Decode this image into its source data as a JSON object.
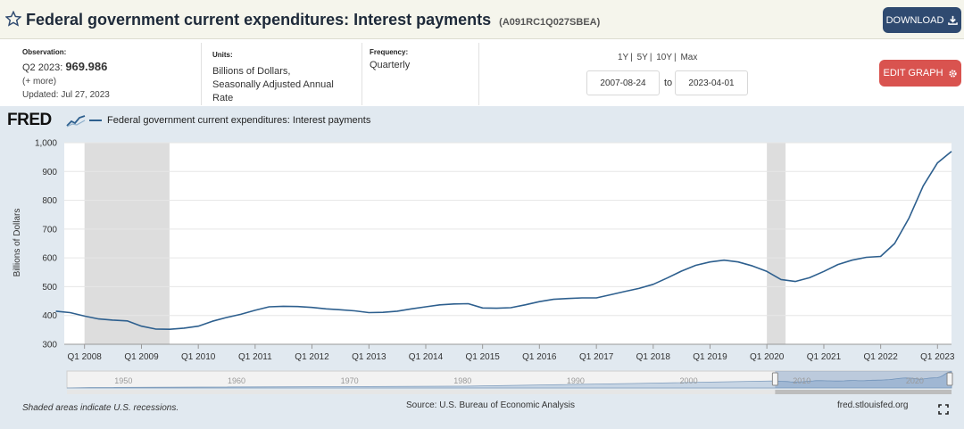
{
  "header": {
    "title": "Federal government current expenditures: Interest payments",
    "series_id": "(A091RC1Q027SBEA)",
    "download_label": "DOWNLOAD"
  },
  "meta": {
    "observation_label": "Observation:",
    "observation_period": "Q2 2023:",
    "observation_value": "969.986",
    "more": "(+ more)",
    "updated": "Updated: Jul 27, 2023",
    "units_label": "Units:",
    "units_lines": [
      "Billions of Dollars,",
      "Seasonally Adjusted Annual",
      "Rate"
    ],
    "frequency_label": "Frequency:",
    "frequency": "Quarterly"
  },
  "controls": {
    "ranges": [
      "1Y",
      "5Y",
      "10Y",
      "Max"
    ],
    "start_date": "2007-08-24",
    "to_label": "to",
    "end_date": "2023-04-01",
    "edit_label": "EDIT GRAPH"
  },
  "chart_header": {
    "logo": "FRED",
    "legend": "Federal government current expenditures: Interest payments"
  },
  "footer": {
    "note": "Shaded areas indicate U.S. recessions.",
    "source": "Source: U.S. Bureau of Economic Analysis",
    "site": "fred.stlouisfed.org"
  },
  "colors": {
    "line": "#2d5f8e",
    "recession": "#dddddd",
    "panel": "#e1e9f0",
    "edit_button": "#d9534f",
    "download_button": "#2f4a70"
  },
  "chart_data": {
    "type": "line",
    "title": "",
    "xlabel": "",
    "ylabel": "Billions of Dollars",
    "ylim": [
      300,
      1000
    ],
    "yticks": [
      "300",
      "400",
      "500",
      "600",
      "700",
      "800",
      "900",
      "1,000"
    ],
    "xticks": [
      "Q1 2008",
      "Q1 2009",
      "Q1 2010",
      "Q1 2011",
      "Q1 2012",
      "Q1 2013",
      "Q1 2014",
      "Q1 2015",
      "Q1 2016",
      "Q1 2017",
      "Q1 2018",
      "Q1 2019",
      "Q1 2020",
      "Q1 2021",
      "Q1 2022",
      "Q1 2023"
    ],
    "recessions": [
      [
        "2008-01-01",
        "2009-06-30"
      ],
      [
        "2020-01-01",
        "2020-04-30"
      ]
    ],
    "series": [
      {
        "name": "Federal government current expenditures: Interest payments",
        "x": [
          "2007-07-01",
          "2007-10-01",
          "2008-01-01",
          "2008-04-01",
          "2008-07-01",
          "2008-10-01",
          "2009-01-01",
          "2009-04-01",
          "2009-07-01",
          "2009-10-01",
          "2010-01-01",
          "2010-04-01",
          "2010-07-01",
          "2010-10-01",
          "2011-01-01",
          "2011-04-01",
          "2011-07-01",
          "2011-10-01",
          "2012-01-01",
          "2012-04-01",
          "2012-07-01",
          "2012-10-01",
          "2013-01-01",
          "2013-04-01",
          "2013-07-01",
          "2013-10-01",
          "2014-01-01",
          "2014-04-01",
          "2014-07-01",
          "2014-10-01",
          "2015-01-01",
          "2015-04-01",
          "2015-07-01",
          "2015-10-01",
          "2016-01-01",
          "2016-04-01",
          "2016-07-01",
          "2016-10-01",
          "2017-01-01",
          "2017-04-01",
          "2017-07-01",
          "2017-10-01",
          "2018-01-01",
          "2018-04-01",
          "2018-07-01",
          "2018-10-01",
          "2019-01-01",
          "2019-04-01",
          "2019-07-01",
          "2019-10-01",
          "2020-01-01",
          "2020-04-01",
          "2020-07-01",
          "2020-10-01",
          "2021-01-01",
          "2021-04-01",
          "2021-07-01",
          "2021-10-01",
          "2022-01-01",
          "2022-04-01",
          "2022-07-01",
          "2022-10-01",
          "2023-01-01",
          "2023-04-01"
        ],
        "values": [
          415,
          410,
          398,
          388,
          384,
          381,
          363,
          353,
          352,
          356,
          363,
          380,
          393,
          404,
          418,
          430,
          432,
          431,
          428,
          423,
          420,
          416,
          410,
          411,
          415,
          423,
          430,
          437,
          440,
          441,
          426,
          425,
          427,
          437,
          448,
          456,
          459,
          461,
          461,
          472,
          483,
          494,
          508,
          530,
          554,
          574,
          586,
          592,
          586,
          572,
          553,
          525,
          518,
          531,
          553,
          577,
          592,
          602,
          605,
          650,
          737,
          850,
          930,
          969.986
        ]
      }
    ]
  }
}
